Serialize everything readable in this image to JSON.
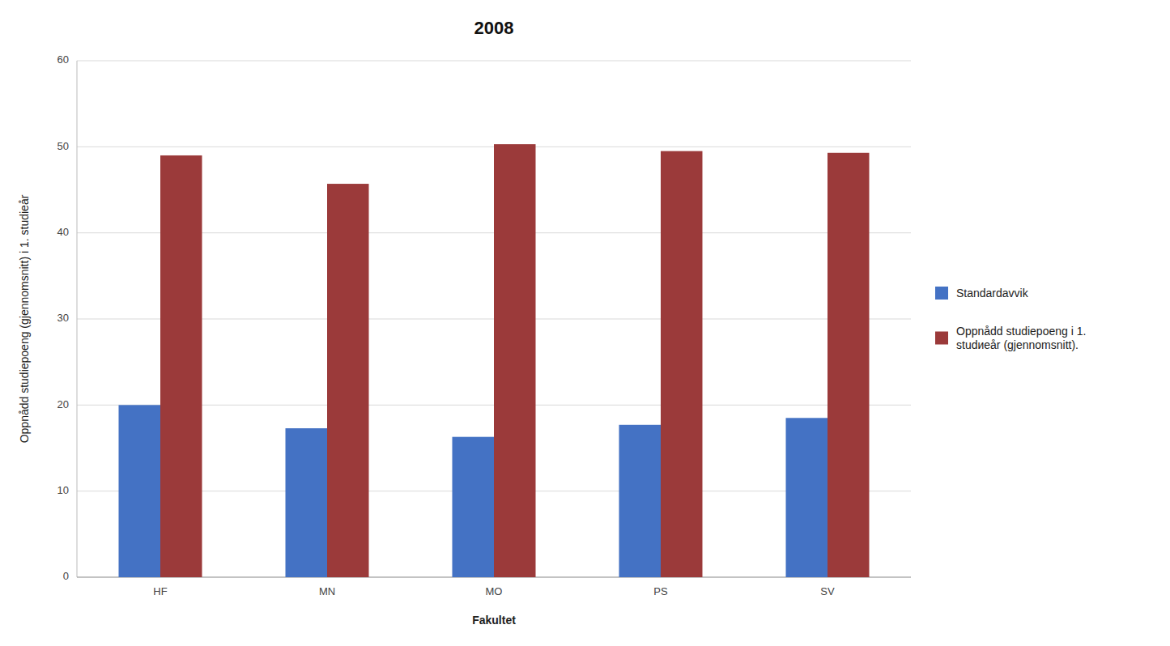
{
  "chart_data": {
    "type": "bar",
    "title": "2008",
    "categories": [
      "HF",
      "MN",
      "MO",
      "PS",
      "SV"
    ],
    "series": [
      {
        "name": "Standardavvik",
        "color": "#4472C4",
        "values": [
          20.0,
          17.3,
          16.3,
          17.7,
          18.5
        ]
      },
      {
        "name": "Oppnådd studiepoeng i 1.\nstudиеår (gjennomsnitt).",
        "color": "#9B3A3A",
        "values": [
          49.0,
          45.7,
          50.3,
          49.5,
          49.3
        ]
      }
    ],
    "xlabel": "Fakultet",
    "ylabel": "Oppnådd studiepoeng (gjennomsnitt) i 1. studieår",
    "ylim": [
      0,
      60
    ],
    "yticks": [
      0,
      10,
      20,
      30,
      40,
      50,
      60
    ],
    "grid": true,
    "legend": "right"
  }
}
